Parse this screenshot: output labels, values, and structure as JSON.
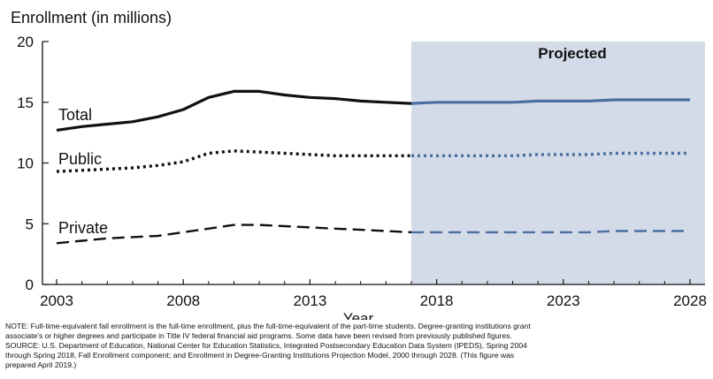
{
  "chart_data": {
    "type": "line",
    "ylabel": "Enrollment (in millions)",
    "xlabel": "Year",
    "ylim": [
      0,
      20
    ],
    "yticks": [
      0,
      5,
      10,
      15,
      20
    ],
    "xlim": [
      2003,
      2028
    ],
    "xticks": [
      2003,
      2008,
      2013,
      2018,
      2023,
      2028
    ],
    "projected_region": {
      "start": 2017,
      "end": 2028,
      "label": "Projected",
      "color": "#d3dbe8"
    },
    "colors": {
      "actual": "#111111",
      "projected": "#4a6fa0"
    },
    "grid": false,
    "x": [
      2003,
      2004,
      2005,
      2006,
      2007,
      2008,
      2009,
      2010,
      2011,
      2012,
      2013,
      2014,
      2015,
      2016,
      2017,
      2018,
      2019,
      2020,
      2021,
      2022,
      2023,
      2024,
      2025,
      2026,
      2027,
      2028
    ],
    "series": [
      {
        "name": "Total",
        "style": "solid",
        "values": [
          12.7,
          13.0,
          13.2,
          13.4,
          13.8,
          14.4,
          15.4,
          15.9,
          15.9,
          15.6,
          15.4,
          15.3,
          15.1,
          15.0,
          14.9,
          15.0,
          15.0,
          15.0,
          15.0,
          15.1,
          15.1,
          15.1,
          15.2,
          15.2,
          15.2,
          15.2
        ]
      },
      {
        "name": "Public",
        "style": "dotted",
        "values": [
          9.3,
          9.4,
          9.5,
          9.6,
          9.8,
          10.1,
          10.8,
          11.0,
          10.9,
          10.8,
          10.7,
          10.6,
          10.6,
          10.6,
          10.6,
          10.6,
          10.6,
          10.6,
          10.6,
          10.7,
          10.7,
          10.7,
          10.8,
          10.8,
          10.8,
          10.8
        ]
      },
      {
        "name": "Private",
        "style": "dashed",
        "values": [
          3.4,
          3.6,
          3.8,
          3.9,
          4.0,
          4.3,
          4.6,
          4.9,
          4.9,
          4.8,
          4.7,
          4.6,
          4.5,
          4.4,
          4.3,
          4.3,
          4.3,
          4.3,
          4.3,
          4.3,
          4.3,
          4.3,
          4.4,
          4.4,
          4.4,
          4.4
        ]
      }
    ]
  },
  "note": {
    "line1": "NOTE: Full-time-equivalent fall enrollment is the full-time enrollment, plus the full-time-equivalent of the part-time students. Degree-granting institutions grant",
    "line2": "associate's or higher degrees and participate in Title IV federal financial aid programs. Some data have been revised from previously published figures.",
    "line3": "SOURCE: U.S. Department of Education, National Center for Education Statistics, Integrated Postsecondary Education Data System (IPEDS), Spring 2004",
    "line4": "through Spring 2018, Fall Enrollment component; and Enrollment in Degree-Granting Institutions Projection Model, 2000 through 2028. (This figure was",
    "line5": "prepared April 2019.)"
  }
}
